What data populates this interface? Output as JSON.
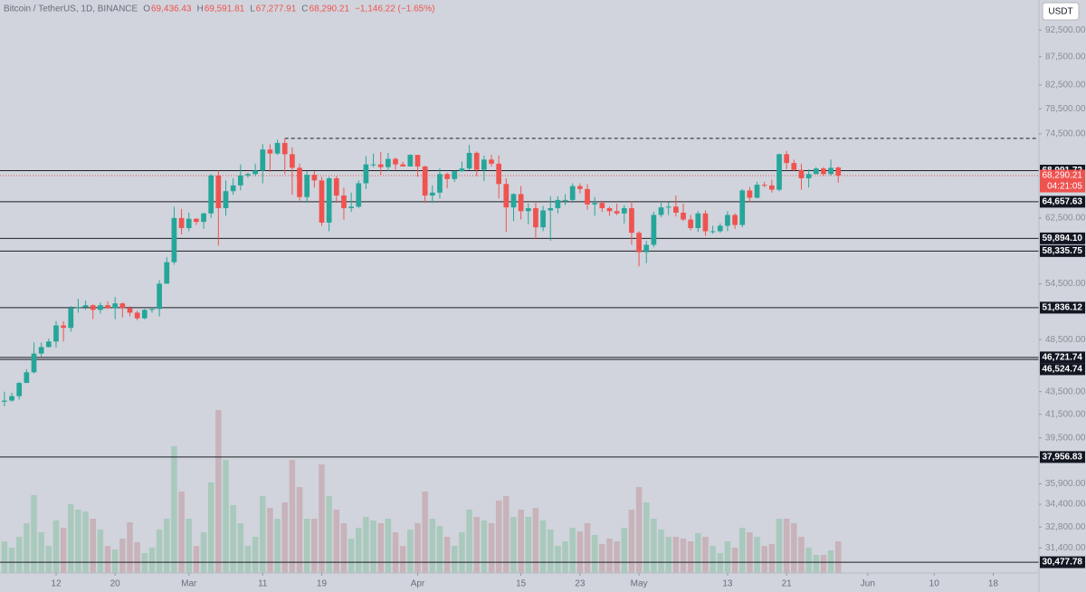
{
  "chart_data": {
    "type": "candlestick",
    "header": {
      "symbol": "Bitcoin / TetherUS, 1D, BINANCE",
      "fields": [
        {
          "key": "O",
          "value": "69,436.43"
        },
        {
          "key": "H",
          "value": "69,591.81"
        },
        {
          "key": "L",
          "value": "67,277.91"
        },
        {
          "key": "C",
          "value": "68,290.21"
        }
      ],
      "change": "−1,146.22 (−1.65%)"
    },
    "currency": "USDT",
    "log_scale": true,
    "grid": false,
    "up_color": "#26a69a",
    "down_color": "#ef5350",
    "volume_up_color": "#a9c9bd",
    "volume_down_color": "#c8b3ba",
    "ylim": [
      29800,
      98500
    ],
    "xlim": [
      -0.6,
      140.2
    ],
    "yticks": [
      {
        "value": 92500,
        "label": "92,500.00"
      },
      {
        "value": 87500,
        "label": "87,500.00"
      },
      {
        "value": 82500,
        "label": "82,500.00"
      },
      {
        "value": 78500,
        "label": "78,500.00"
      },
      {
        "value": 74500,
        "label": "74,500.00"
      },
      {
        "value": 62500,
        "label": "62,500.00"
      },
      {
        "value": 54500,
        "label": "54,500.00"
      },
      {
        "value": 48500,
        "label": "48,500.00"
      },
      {
        "value": 43500,
        "label": "43,500.00"
      },
      {
        "value": 41500,
        "label": "41,500.00"
      },
      {
        "value": 39500,
        "label": "39,500.00"
      },
      {
        "value": 35900,
        "label": "35,900.00"
      },
      {
        "value": 34400,
        "label": "34,400.00"
      },
      {
        "value": 32800,
        "label": "32,800.00"
      },
      {
        "value": 31400,
        "label": "31,400.00"
      }
    ],
    "xticks": [
      {
        "value": 7,
        "label": "12"
      },
      {
        "value": 15,
        "label": "20"
      },
      {
        "value": 25,
        "label": "Mar"
      },
      {
        "value": 35,
        "label": "11"
      },
      {
        "value": 43,
        "label": "19"
      },
      {
        "value": 56,
        "label": "Apr"
      },
      {
        "value": 70,
        "label": "15"
      },
      {
        "value": 78,
        "label": "23"
      },
      {
        "value": 86,
        "label": "May"
      },
      {
        "value": 98,
        "label": "13"
      },
      {
        "value": 106,
        "label": "21"
      },
      {
        "value": 117,
        "label": "Jun"
      },
      {
        "value": 126,
        "label": "10"
      },
      {
        "value": 134,
        "label": "18"
      }
    ],
    "levels": [
      {
        "value": 68991.72,
        "label": "68,991.72"
      },
      {
        "value": 64657.63,
        "label": "64,657.63"
      },
      {
        "value": 59894.1,
        "label": "59,894.10"
      },
      {
        "value": 58335.75,
        "label": "58,335.75"
      },
      {
        "value": 51836.12,
        "label": "51,836.12"
      },
      {
        "value": 46721.74,
        "label": "46,721.74"
      },
      {
        "value": 46524.74,
        "label": "46,524.74"
      },
      {
        "value": 37956.83,
        "label": "37,956.83"
      },
      {
        "value": 30477.78,
        "label": "30,477.78"
      }
    ],
    "dashed_levels": [
      73800
    ],
    "last_price": {
      "value": 68290.21,
      "label": "68,290.21"
    },
    "countdown": "04:21:05",
    "ohlc": [
      [
        42600,
        43500,
        42200,
        42700
      ],
      [
        42700,
        43400,
        42600,
        43100
      ],
      [
        43100,
        44400,
        42800,
        44300
      ],
      [
        44300,
        45600,
        44300,
        45300
      ],
      [
        45300,
        48200,
        45200,
        47100
      ],
      [
        47100,
        48200,
        46800,
        47750
      ],
      [
        47750,
        48600,
        47700,
        48300
      ],
      [
        48300,
        50400,
        47700,
        49950
      ],
      [
        49950,
        50400,
        48300,
        49700
      ],
      [
        49700,
        52000,
        49300,
        51800
      ],
      [
        51800,
        52800,
        51300,
        51900
      ],
      [
        51900,
        52600,
        51600,
        52100
      ],
      [
        52100,
        52200,
        50600,
        51600
      ],
      [
        51600,
        52400,
        51200,
        52100
      ],
      [
        52100,
        52500,
        51700,
        51800
      ],
      [
        51800,
        53000,
        50600,
        52300
      ],
      [
        52300,
        52400,
        50800,
        51800
      ],
      [
        51800,
        52000,
        50900,
        51300
      ],
      [
        51300,
        51500,
        50500,
        50700
      ],
      [
        50700,
        51700,
        50600,
        51600
      ],
      [
        51600,
        51900,
        51300,
        51700
      ],
      [
        51700,
        54900,
        50900,
        54500
      ],
      [
        54500,
        57600,
        54500,
        57000
      ],
      [
        57000,
        64000,
        56700,
        62500
      ],
      [
        62500,
        63700,
        60400,
        61200
      ],
      [
        61200,
        63200,
        60800,
        62400
      ],
      [
        62400,
        62500,
        61600,
        62000
      ],
      [
        62000,
        63200,
        61100,
        63100
      ],
      [
        63100,
        68500,
        62500,
        68300
      ],
      [
        68300,
        69000,
        59000,
        63800
      ],
      [
        63800,
        67600,
        62800,
        66100
      ],
      [
        66100,
        67900,
        65600,
        66900
      ],
      [
        66900,
        69900,
        66200,
        68300
      ],
      [
        68300,
        68700,
        68000,
        68500
      ],
      [
        68500,
        70000,
        68200,
        69000
      ],
      [
        69000,
        72900,
        67200,
        72100
      ],
      [
        72100,
        72900,
        68800,
        71500
      ],
      [
        71500,
        73600,
        71300,
        73100
      ],
      [
        73100,
        73800,
        68500,
        71400
      ],
      [
        71400,
        72400,
        65600,
        69400
      ],
      [
        69400,
        70000,
        64800,
        65300
      ],
      [
        65300,
        68900,
        64500,
        68400
      ],
      [
        68400,
        68900,
        66600,
        67600
      ],
      [
        67600,
        68100,
        61500,
        61900
      ],
      [
        61900,
        68100,
        60800,
        67900
      ],
      [
        67900,
        68200,
        64500,
        65500
      ],
      [
        65500,
        66600,
        62300,
        63800
      ],
      [
        63800,
        65900,
        63300,
        64000
      ],
      [
        64000,
        67600,
        63800,
        67200
      ],
      [
        67200,
        71100,
        66400,
        69900
      ],
      [
        69900,
        71500,
        69500,
        69900
      ],
      [
        69900,
        71700,
        68400,
        69500
      ],
      [
        69500,
        71600,
        68900,
        70700
      ],
      [
        70700,
        70900,
        69100,
        69900
      ],
      [
        69900,
        70300,
        69600,
        69600
      ],
      [
        69600,
        71400,
        69600,
        71300
      ],
      [
        71300,
        71300,
        68100,
        69600
      ],
      [
        69600,
        69700,
        64500,
        65500
      ],
      [
        65500,
        66900,
        64500,
        65900
      ],
      [
        65900,
        69300,
        65100,
        68500
      ],
      [
        68500,
        68700,
        66500,
        67800
      ],
      [
        67800,
        69000,
        67400,
        68900
      ],
      [
        68900,
        70300,
        68800,
        69300
      ],
      [
        69300,
        72800,
        69100,
        71600
      ],
      [
        71600,
        71800,
        68200,
        69100
      ],
      [
        69100,
        71200,
        67500,
        70600
      ],
      [
        70600,
        71300,
        69600,
        70000
      ],
      [
        70000,
        71200,
        65100,
        67100
      ],
      [
        67100,
        67900,
        60700,
        63900
      ],
      [
        63900,
        65800,
        62100,
        65700
      ],
      [
        65700,
        66800,
        62300,
        63400
      ],
      [
        63400,
        64400,
        61700,
        63800
      ],
      [
        63800,
        64500,
        59800,
        61300
      ],
      [
        61300,
        64100,
        60800,
        63500
      ],
      [
        63500,
        65400,
        59600,
        63800
      ],
      [
        63800,
        65400,
        63100,
        64900
      ],
      [
        64900,
        65700,
        64200,
        64900
      ],
      [
        64900,
        67200,
        64500,
        66800
      ],
      [
        66800,
        67200,
        65800,
        66400
      ],
      [
        66400,
        67100,
        63600,
        64300
      ],
      [
        64300,
        65300,
        62800,
        64500
      ],
      [
        64500,
        64800,
        63300,
        63800
      ],
      [
        63800,
        64000,
        62800,
        63400
      ],
      [
        63400,
        64400,
        62900,
        63100
      ],
      [
        63100,
        64200,
        61800,
        63800
      ],
      [
        63800,
        64700,
        59100,
        60600
      ],
      [
        60600,
        60800,
        56500,
        58200
      ],
      [
        58200,
        59600,
        56900,
        59100
      ],
      [
        59100,
        63300,
        58800,
        62900
      ],
      [
        62900,
        64500,
        62600,
        63900
      ],
      [
        63900,
        64600,
        62900,
        64000
      ],
      [
        64000,
        65500,
        62700,
        63200
      ],
      [
        63200,
        64400,
        62100,
        62300
      ],
      [
        62300,
        62900,
        60900,
        61200
      ],
      [
        61200,
        63400,
        60700,
        63100
      ],
      [
        63100,
        63500,
        60200,
        60800
      ],
      [
        60800,
        61500,
        60500,
        60800
      ],
      [
        60800,
        61800,
        60600,
        61500
      ],
      [
        61500,
        63400,
        60800,
        62900
      ],
      [
        62900,
        63100,
        61100,
        61600
      ],
      [
        61600,
        66400,
        61300,
        66200
      ],
      [
        66200,
        66700,
        64600,
        65200
      ],
      [
        65200,
        67400,
        65100,
        67000
      ],
      [
        67000,
        67400,
        66600,
        66900
      ],
      [
        66900,
        67700,
        65900,
        66300
      ],
      [
        66300,
        71500,
        66100,
        71400
      ],
      [
        71400,
        71900,
        69200,
        70100
      ],
      [
        70100,
        70600,
        68900,
        69100
      ],
      [
        69100,
        70000,
        66300,
        67900
      ],
      [
        67900,
        69200,
        66600,
        68500
      ],
      [
        68500,
        69500,
        68500,
        69300
      ],
      [
        69300,
        69500,
        68200,
        68500
      ],
      [
        68500,
        70600,
        68300,
        69400
      ],
      [
        69436.43,
        69591.81,
        67277.91,
        68290.21
      ]
    ],
    "volume": [
      35,
      28,
      40,
      55,
      86,
      45,
      30,
      58,
      50,
      76,
      70,
      68,
      60,
      48,
      30,
      26,
      38,
      56,
      34,
      22,
      28,
      48,
      60,
      140,
      90,
      60,
      30,
      45,
      100,
      180,
      125,
      75,
      55,
      30,
      40,
      85,
      72,
      60,
      78,
      125,
      95,
      60,
      60,
      120,
      85,
      70,
      55,
      38,
      50,
      62,
      58,
      55,
      60,
      45,
      30,
      48,
      55,
      90,
      60,
      52,
      40,
      30,
      45,
      70,
      62,
      58,
      55,
      80,
      85,
      62,
      70,
      62,
      72,
      58,
      48,
      30,
      35,
      50,
      46,
      55,
      42,
      32,
      38,
      35,
      50,
      70,
      95,
      78,
      60,
      48,
      40,
      40,
      38,
      35,
      44,
      40,
      30,
      22,
      35,
      28,
      50,
      45,
      40,
      30,
      32,
      60,
      60,
      55,
      40,
      28,
      20,
      20,
      25,
      35
    ]
  }
}
